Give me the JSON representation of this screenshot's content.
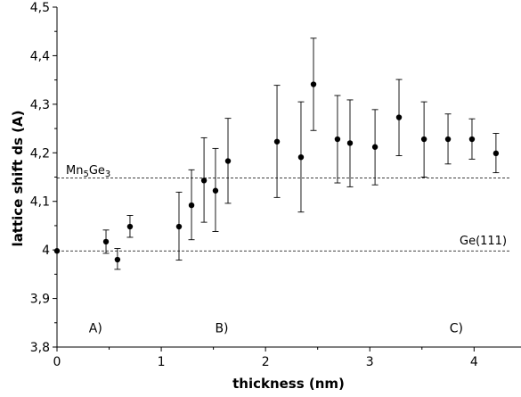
{
  "chart_data": {
    "type": "scatter",
    "title": "",
    "xlabel": "thickness (nm)",
    "ylabel": "lattice shift ds (A)",
    "xlim": [
      0,
      4.45
    ],
    "ylim": [
      3.8,
      4.5
    ],
    "x_ticks": [
      0,
      1,
      2,
      3,
      4
    ],
    "x_tick_labels": [
      "0",
      "1",
      "2",
      "3",
      "4"
    ],
    "y_ticks": [
      3.8,
      3.9,
      4.0,
      4.1,
      4.2,
      4.3,
      4.4,
      4.5
    ],
    "y_tick_labels": [
      "3,8",
      "3,9",
      "4",
      "4,1",
      "4,2",
      "4,3",
      "4,4",
      "4,5"
    ],
    "grid": false,
    "legend": "none",
    "reference_lines": [
      {
        "label": "Mn5Ge3",
        "label_main": "Mn",
        "label_sub1": "5",
        "label_mid": "Ge",
        "label_sub2": "3",
        "y": 4.148,
        "style": "dashed"
      },
      {
        "label": "Ge(111)",
        "y": 3.998,
        "style": "dashed"
      }
    ],
    "region_labels": [
      {
        "text": "A)",
        "x": 0.37,
        "y": 3.83
      },
      {
        "text": "B)",
        "x": 1.58,
        "y": 3.83
      },
      {
        "text": "C)",
        "x": 3.83,
        "y": 3.83
      }
    ],
    "points": [
      {
        "x": 0.0,
        "y": 3.998,
        "err_low": 3.998,
        "err_high": 3.998
      },
      {
        "x": 0.47,
        "y": 4.017,
        "err_low": 3.993,
        "err_high": 4.041
      },
      {
        "x": 0.58,
        "y": 3.98,
        "err_low": 3.96,
        "err_high": 4.003
      },
      {
        "x": 0.7,
        "y": 4.048,
        "err_low": 4.026,
        "err_high": 4.071
      },
      {
        "x": 1.17,
        "y": 4.048,
        "err_low": 3.979,
        "err_high": 4.119
      },
      {
        "x": 1.29,
        "y": 4.092,
        "err_low": 4.021,
        "err_high": 4.165
      },
      {
        "x": 1.41,
        "y": 4.143,
        "err_low": 4.057,
        "err_high": 4.231
      },
      {
        "x": 1.52,
        "y": 4.122,
        "err_low": 4.038,
        "err_high": 4.209
      },
      {
        "x": 1.64,
        "y": 4.183,
        "err_low": 4.096,
        "err_high": 4.271
      },
      {
        "x": 2.11,
        "y": 4.223,
        "err_low": 4.108,
        "err_high": 4.339
      },
      {
        "x": 2.34,
        "y": 4.191,
        "err_low": 4.078,
        "err_high": 4.305
      },
      {
        "x": 2.46,
        "y": 4.341,
        "err_low": 4.246,
        "err_high": 4.436
      },
      {
        "x": 2.69,
        "y": 4.228,
        "err_low": 4.138,
        "err_high": 4.318
      },
      {
        "x": 2.81,
        "y": 4.22,
        "err_low": 4.13,
        "err_high": 4.309
      },
      {
        "x": 3.05,
        "y": 4.212,
        "err_low": 4.134,
        "err_high": 4.289
      },
      {
        "x": 3.28,
        "y": 4.273,
        "err_low": 4.194,
        "err_high": 4.351
      },
      {
        "x": 3.52,
        "y": 4.228,
        "err_low": 4.15,
        "err_high": 4.305
      },
      {
        "x": 3.75,
        "y": 4.228,
        "err_low": 4.177,
        "err_high": 4.28
      },
      {
        "x": 3.98,
        "y": 4.228,
        "err_low": 4.187,
        "err_high": 4.27
      },
      {
        "x": 4.21,
        "y": 4.199,
        "err_low": 4.159,
        "err_high": 4.24
      }
    ]
  }
}
